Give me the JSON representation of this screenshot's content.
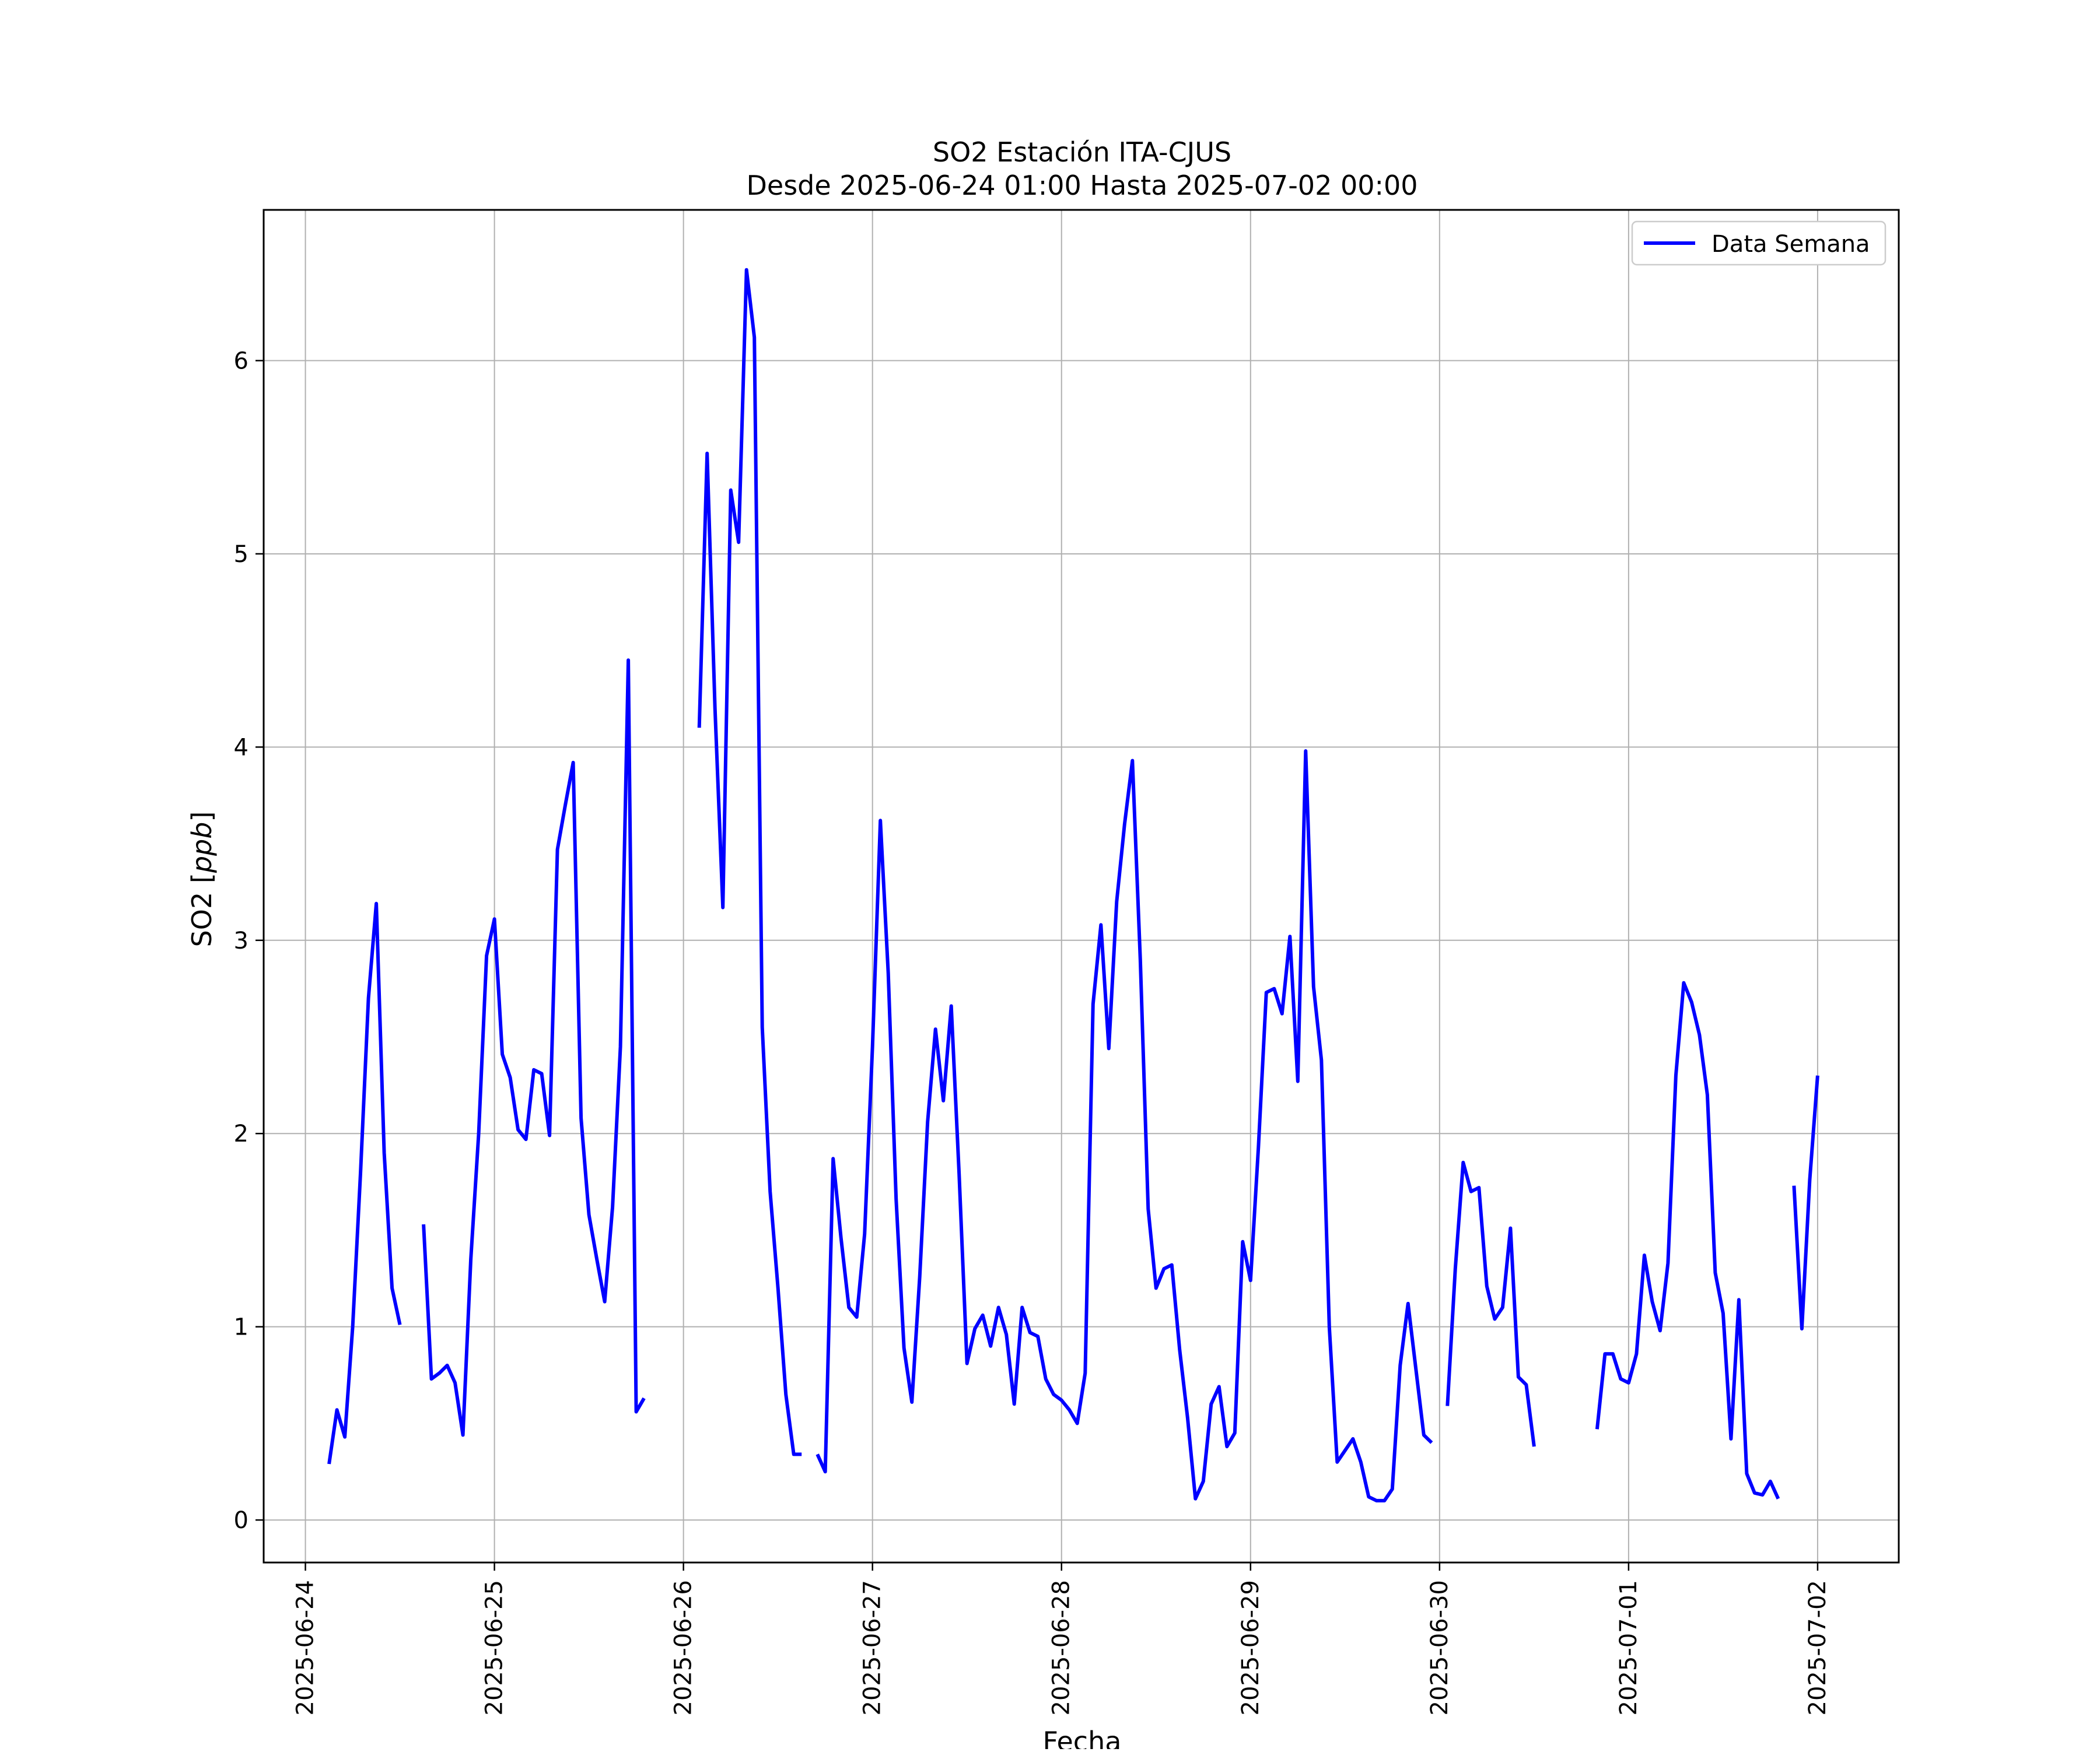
{
  "chart_data": {
    "type": "line",
    "title": "SO2 Estación ITA-CJUS",
    "subtitle": "Desde 2025-06-24 01:00 Hasta 2025-07-02 00:00",
    "xlabel": "Fecha",
    "ylabel": "SO2 [ppb]",
    "ylabel_plain": "SO2 [",
    "ylabel_italic": "ppb",
    "ylabel_close": "]",
    "xlim": [
      "2025-06-23 18:42",
      "2025-07-02 10:18"
    ],
    "ylim": [
      -0.22,
      6.78
    ],
    "x_ticks": [
      "2025-06-24",
      "2025-06-25",
      "2025-06-26",
      "2025-06-27",
      "2025-06-28",
      "2025-06-29",
      "2025-06-30",
      "2025-07-01",
      "2025-07-02"
    ],
    "y_ticks": [
      0,
      1,
      2,
      3,
      4,
      5,
      6
    ],
    "grid": true,
    "legend_position": "top-right",
    "series": [
      {
        "name": "Data Semana",
        "color": "#0000ff",
        "points": [
          [
            "2025-06-24 03:00",
            0.29
          ],
          [
            "2025-06-24 04:00",
            0.57
          ],
          [
            "2025-06-24 05:00",
            0.43
          ],
          [
            "2025-06-24 06:00",
            1.0
          ],
          [
            "2025-06-24 07:00",
            1.8
          ],
          [
            "2025-06-24 08:00",
            2.7
          ],
          [
            "2025-06-24 09:00",
            3.19
          ],
          [
            "2025-06-24 10:00",
            1.9
          ],
          [
            "2025-06-24 11:00",
            1.2
          ],
          [
            "2025-06-24 12:00",
            1.01
          ],
          [
            "2025-06-24 13:00",
            null
          ],
          [
            "2025-06-24 14:00",
            null
          ],
          [
            "2025-06-24 15:00",
            1.53
          ],
          [
            "2025-06-24 16:00",
            0.73
          ],
          [
            "2025-06-24 17:00",
            0.76
          ],
          [
            "2025-06-24 18:00",
            0.8
          ],
          [
            "2025-06-24 19:00",
            0.71
          ],
          [
            "2025-06-24 20:00",
            0.44
          ],
          [
            "2025-06-24 21:00",
            1.35
          ],
          [
            "2025-06-24 22:00",
            2.0
          ],
          [
            "2025-06-24 23:00",
            2.92
          ],
          [
            "2025-06-25 00:00",
            3.11
          ],
          [
            "2025-06-25 01:00",
            2.41
          ],
          [
            "2025-06-25 02:00",
            2.29
          ],
          [
            "2025-06-25 03:00",
            2.02
          ],
          [
            "2025-06-25 04:00",
            1.97
          ],
          [
            "2025-06-25 05:00",
            2.33
          ],
          [
            "2025-06-25 06:00",
            2.31
          ],
          [
            "2025-06-25 07:00",
            1.99
          ],
          [
            "2025-06-25 08:00",
            3.47
          ],
          [
            "2025-06-25 09:00",
            3.7
          ],
          [
            "2025-06-25 10:00",
            3.92
          ],
          [
            "2025-06-25 11:00",
            2.08
          ],
          [
            "2025-06-25 12:00",
            1.58
          ],
          [
            "2025-06-25 13:00",
            1.35
          ],
          [
            "2025-06-25 14:00",
            1.13
          ],
          [
            "2025-06-25 15:00",
            1.62
          ],
          [
            "2025-06-25 16:00",
            2.45
          ],
          [
            "2025-06-25 17:00",
            4.45
          ],
          [
            "2025-06-25 18:00",
            0.56
          ],
          [
            "2025-06-25 19:00",
            0.63
          ],
          [
            "2025-06-25 20:00",
            null
          ],
          [
            "2025-06-26 02:00",
            4.1
          ],
          [
            "2025-06-26 03:00",
            5.52
          ],
          [
            "2025-06-26 04:00",
            4.2
          ],
          [
            "2025-06-26 05:00",
            3.17
          ],
          [
            "2025-06-26 06:00",
            5.33
          ],
          [
            "2025-06-26 07:00",
            5.06
          ],
          [
            "2025-06-26 08:00",
            6.47
          ],
          [
            "2025-06-26 09:00",
            6.12
          ],
          [
            "2025-06-26 10:00",
            2.55
          ],
          [
            "2025-06-26 11:00",
            1.7
          ],
          [
            "2025-06-26 12:00",
            1.2
          ],
          [
            "2025-06-26 13:00",
            0.65
          ],
          [
            "2025-06-26 14:00",
            0.34
          ],
          [
            "2025-06-26 15:00",
            0.34
          ],
          [
            "2025-06-26 16:00",
            null
          ],
          [
            "2025-06-26 17:00",
            0.34
          ],
          [
            "2025-06-26 18:00",
            0.25
          ],
          [
            "2025-06-26 19:00",
            1.87
          ],
          [
            "2025-06-26 20:00",
            1.46
          ],
          [
            "2025-06-26 21:00",
            1.1
          ],
          [
            "2025-06-26 22:00",
            1.05
          ],
          [
            "2025-06-26 23:00",
            1.48
          ],
          [
            "2025-06-27 00:00",
            2.45
          ],
          [
            "2025-06-27 01:00",
            3.62
          ],
          [
            "2025-06-27 02:00",
            2.83
          ],
          [
            "2025-06-27 03:00",
            1.66
          ],
          [
            "2025-06-27 04:00",
            0.89
          ],
          [
            "2025-06-27 05:00",
            0.61
          ],
          [
            "2025-06-27 06:00",
            1.26
          ],
          [
            "2025-06-27 07:00",
            2.06
          ],
          [
            "2025-06-27 08:00",
            2.54
          ],
          [
            "2025-06-27 09:00",
            2.17
          ],
          [
            "2025-06-27 10:00",
            2.66
          ],
          [
            "2025-06-27 11:00",
            1.79
          ],
          [
            "2025-06-27 12:00",
            0.81
          ],
          [
            "2025-06-27 13:00",
            0.99
          ],
          [
            "2025-06-27 14:00",
            1.06
          ],
          [
            "2025-06-27 15:00",
            0.9
          ],
          [
            "2025-06-27 16:00",
            1.1
          ],
          [
            "2025-06-27 17:00",
            0.96
          ],
          [
            "2025-06-27 18:00",
            0.6
          ],
          [
            "2025-06-27 19:00",
            1.1
          ],
          [
            "2025-06-27 20:00",
            0.97
          ],
          [
            "2025-06-27 21:00",
            0.95
          ],
          [
            "2025-06-27 22:00",
            0.73
          ],
          [
            "2025-06-27 23:00",
            0.65
          ],
          [
            "2025-06-28 00:00",
            0.62
          ],
          [
            "2025-06-28 01:00",
            0.57
          ],
          [
            "2025-06-28 02:00",
            0.5
          ],
          [
            "2025-06-28 03:00",
            0.76
          ],
          [
            "2025-06-28 04:00",
            2.67
          ],
          [
            "2025-06-28 05:00",
            3.08
          ],
          [
            "2025-06-28 06:00",
            2.44
          ],
          [
            "2025-06-28 07:00",
            3.2
          ],
          [
            "2025-06-28 08:00",
            3.6
          ],
          [
            "2025-06-28 09:00",
            3.93
          ],
          [
            "2025-06-28 10:00",
            2.9
          ],
          [
            "2025-06-28 11:00",
            1.61
          ],
          [
            "2025-06-28 12:00",
            1.2
          ],
          [
            "2025-06-28 13:00",
            1.3
          ],
          [
            "2025-06-28 14:00",
            1.32
          ],
          [
            "2025-06-28 15:00",
            0.88
          ],
          [
            "2025-06-28 16:00",
            0.53
          ],
          [
            "2025-06-28 17:00",
            0.11
          ],
          [
            "2025-06-28 18:00",
            0.2
          ],
          [
            "2025-06-28 19:00",
            0.6
          ],
          [
            "2025-06-28 20:00",
            0.69
          ],
          [
            "2025-06-28 21:00",
            0.38
          ],
          [
            "2025-06-28 22:00",
            0.45
          ],
          [
            "2025-06-28 23:00",
            1.44
          ],
          [
            "2025-06-29 00:00",
            1.24
          ],
          [
            "2025-06-29 01:00",
            1.93
          ],
          [
            "2025-06-29 02:00",
            2.73
          ],
          [
            "2025-06-29 03:00",
            2.75
          ],
          [
            "2025-06-29 04:00",
            2.62
          ],
          [
            "2025-06-29 05:00",
            3.02
          ],
          [
            "2025-06-29 06:00",
            2.27
          ],
          [
            "2025-06-29 07:00",
            3.98
          ],
          [
            "2025-06-29 08:00",
            2.76
          ],
          [
            "2025-06-29 09:00",
            2.38
          ],
          [
            "2025-06-29 10:00",
            1.0
          ],
          [
            "2025-06-29 11:00",
            0.3
          ],
          [
            "2025-06-29 12:00",
            0.36
          ],
          [
            "2025-06-29 13:00",
            0.42
          ],
          [
            "2025-06-29 14:00",
            0.3
          ],
          [
            "2025-06-29 15:00",
            0.12
          ],
          [
            "2025-06-29 16:00",
            0.1
          ],
          [
            "2025-06-29 17:00",
            0.1
          ],
          [
            "2025-06-29 18:00",
            0.16
          ],
          [
            "2025-06-29 19:00",
            0.8
          ],
          [
            "2025-06-29 20:00",
            1.12
          ],
          [
            "2025-06-29 21:00",
            0.78
          ],
          [
            "2025-06-29 22:00",
            0.44
          ],
          [
            "2025-06-29 23:00",
            0.4
          ],
          [
            "2025-06-30 00:00",
            null
          ],
          [
            "2025-06-30 01:00",
            0.59
          ],
          [
            "2025-06-30 02:00",
            1.3
          ],
          [
            "2025-06-30 03:00",
            1.85
          ],
          [
            "2025-06-30 04:00",
            1.7
          ],
          [
            "2025-06-30 05:00",
            1.72
          ],
          [
            "2025-06-30 06:00",
            1.21
          ],
          [
            "2025-06-30 07:00",
            1.04
          ],
          [
            "2025-06-30 08:00",
            1.1
          ],
          [
            "2025-06-30 09:00",
            1.51
          ],
          [
            "2025-06-30 10:00",
            0.74
          ],
          [
            "2025-06-30 11:00",
            0.7
          ],
          [
            "2025-06-30 12:00",
            0.38
          ],
          [
            "2025-06-30 13:00",
            null
          ],
          [
            "2025-06-30 20:00",
            0.47
          ],
          [
            "2025-06-30 21:00",
            0.86
          ],
          [
            "2025-06-30 22:00",
            0.86
          ],
          [
            "2025-06-30 23:00",
            0.73
          ],
          [
            "2025-07-01 00:00",
            0.71
          ],
          [
            "2025-07-01 01:00",
            0.86
          ],
          [
            "2025-07-01 02:00",
            1.37
          ],
          [
            "2025-07-01 03:00",
            1.13
          ],
          [
            "2025-07-01 04:00",
            0.98
          ],
          [
            "2025-07-01 05:00",
            1.33
          ],
          [
            "2025-07-01 06:00",
            2.3
          ],
          [
            "2025-07-01 07:00",
            2.78
          ],
          [
            "2025-07-01 08:00",
            2.68
          ],
          [
            "2025-07-01 09:00",
            2.51
          ],
          [
            "2025-07-01 10:00",
            2.2
          ],
          [
            "2025-07-01 11:00",
            1.28
          ],
          [
            "2025-07-01 12:00",
            1.07
          ],
          [
            "2025-07-01 13:00",
            0.42
          ],
          [
            "2025-07-01 14:00",
            1.14
          ],
          [
            "2025-07-01 15:00",
            0.24
          ],
          [
            "2025-07-01 16:00",
            0.14
          ],
          [
            "2025-07-01 17:00",
            0.13
          ],
          [
            "2025-07-01 18:00",
            0.2
          ],
          [
            "2025-07-01 19:00",
            0.11
          ],
          [
            "2025-07-01 20:00",
            null
          ],
          [
            "2025-07-01 21:00",
            1.73
          ],
          [
            "2025-07-01 22:00",
            0.99
          ],
          [
            "2025-07-01 23:00",
            1.76
          ],
          [
            "2025-07-02 00:00",
            2.3
          ]
        ]
      }
    ]
  }
}
